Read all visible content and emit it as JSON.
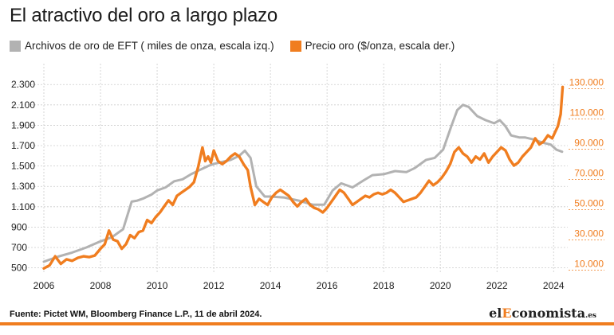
{
  "header": {
    "title": "El atractivo del oro a largo plazo"
  },
  "footer": {
    "source": "Fuente: Pictet WM, Bloomberg Finance L.P., 11 de abril 2024.",
    "brand_prefix": "el",
    "brand_highlight": "E",
    "brand_rest": "conomista",
    "brand_tld": ".es"
  },
  "colors": {
    "accent": "#f07d1f",
    "gray": "#b2b2b2",
    "grid": "#cccccc"
  },
  "chart_data": {
    "type": "line",
    "xlim": [
      2006,
      2024.5
    ],
    "x_ticks": [
      "2006",
      "2008",
      "2010",
      "2012",
      "2014",
      "2016",
      "2018",
      "2020",
      "2022",
      "2024"
    ],
    "y_left": {
      "ylim": [
        450,
        2380
      ],
      "ticks": [
        "500",
        "700",
        "900",
        "1.100",
        "1.300",
        "1.500",
        "1.700",
        "1.900",
        "2.100",
        "2.300"
      ]
    },
    "y_right": {
      "ylim": [
        5000,
        135000
      ],
      "ticks": [
        "10.000",
        "30.000",
        "50.000",
        "70.000",
        "90.000",
        "110.000",
        "130.000"
      ]
    },
    "grid": true,
    "legend_position": "top",
    "series": [
      {
        "name": "Archivos de oro de EFT ( miles de onza, escala izq.)",
        "axis": "left",
        "color": "#b2b2b2",
        "x": [
          2006,
          2006.5,
          2007,
          2007.5,
          2008,
          2008.4,
          2008.8,
          2009.1,
          2009.3,
          2009.5,
          2009.8,
          2010,
          2010.3,
          2010.6,
          2010.9,
          2011.2,
          2011.5,
          2011.8,
          2012,
          2012.3,
          2012.6,
          2012.9,
          2013.1,
          2013.3,
          2013.5,
          2013.8,
          2014,
          2014.5,
          2015,
          2015.5,
          2015.9,
          2016.2,
          2016.5,
          2016.9,
          2017.3,
          2017.6,
          2018,
          2018.4,
          2018.8,
          2019.1,
          2019.5,
          2019.8,
          2020.1,
          2020.4,
          2020.6,
          2020.8,
          2021,
          2021.3,
          2021.6,
          2021.9,
          2022.1,
          2022.3,
          2022.5,
          2022.8,
          2023,
          2023.3,
          2023.6,
          2023.9,
          2024.1,
          2024.3
        ],
        "values": [
          560,
          610,
          650,
          700,
          760,
          800,
          880,
          1150,
          1160,
          1180,
          1220,
          1260,
          1290,
          1350,
          1370,
          1420,
          1460,
          1500,
          1520,
          1540,
          1560,
          1600,
          1650,
          1580,
          1300,
          1200,
          1200,
          1190,
          1160,
          1120,
          1120,
          1260,
          1330,
          1290,
          1360,
          1410,
          1420,
          1450,
          1440,
          1480,
          1560,
          1580,
          1660,
          1900,
          2050,
          2100,
          2080,
          1990,
          1950,
          1920,
          1950,
          1890,
          1800,
          1780,
          1780,
          1760,
          1730,
          1710,
          1660,
          1640
        ]
      },
      {
        "name": "Precio oro ($/onza, escala der.)",
        "axis": "right",
        "color": "#f07d1f",
        "x": [
          2006,
          2006.2,
          2006.4,
          2006.6,
          2006.8,
          2007,
          2007.2,
          2007.4,
          2007.6,
          2007.8,
          2008,
          2008.15,
          2008.3,
          2008.45,
          2008.6,
          2008.75,
          2008.9,
          2009.05,
          2009.2,
          2009.35,
          2009.5,
          2009.65,
          2009.8,
          2009.95,
          2010.1,
          2010.25,
          2010.4,
          2010.55,
          2010.7,
          2010.85,
          2011,
          2011.15,
          2011.3,
          2011.45,
          2011.6,
          2011.7,
          2011.8,
          2011.9,
          2012,
          2012.15,
          2012.3,
          2012.45,
          2012.6,
          2012.75,
          2012.9,
          2013.05,
          2013.2,
          2013.3,
          2013.45,
          2013.6,
          2013.75,
          2013.9,
          2014.05,
          2014.2,
          2014.35,
          2014.5,
          2014.65,
          2014.8,
          2014.95,
          2015.1,
          2015.25,
          2015.4,
          2015.55,
          2015.7,
          2015.85,
          2016,
          2016.15,
          2016.3,
          2016.45,
          2016.6,
          2016.75,
          2016.9,
          2017.05,
          2017.2,
          2017.35,
          2017.5,
          2017.65,
          2017.8,
          2017.95,
          2018.1,
          2018.25,
          2018.4,
          2018.55,
          2018.7,
          2018.85,
          2019,
          2019.15,
          2019.3,
          2019.45,
          2019.6,
          2019.75,
          2019.9,
          2020.05,
          2020.2,
          2020.35,
          2020.5,
          2020.65,
          2020.8,
          2020.95,
          2021.1,
          2021.25,
          2021.4,
          2021.55,
          2021.7,
          2021.85,
          2022,
          2022.15,
          2022.3,
          2022.45,
          2022.6,
          2022.75,
          2022.9,
          2023.05,
          2023.2,
          2023.35,
          2023.5,
          2023.65,
          2023.8,
          2023.95,
          2024.05,
          2024.15,
          2024.25,
          2024.32
        ],
        "values": [
          8000,
          10000,
          16000,
          11000,
          14000,
          13000,
          15000,
          16000,
          15500,
          16500,
          21000,
          24000,
          33000,
          27000,
          26000,
          21000,
          24000,
          30000,
          28000,
          32000,
          33000,
          40000,
          38000,
          42000,
          45000,
          49000,
          53000,
          50000,
          56000,
          58000,
          60000,
          62000,
          65000,
          75000,
          88000,
          79000,
          82000,
          78000,
          86000,
          79000,
          77000,
          79000,
          82000,
          84000,
          82000,
          77000,
          73000,
          62000,
          50000,
          54000,
          52000,
          50000,
          55000,
          58000,
          60000,
          58000,
          56000,
          52000,
          49000,
          52000,
          54000,
          50000,
          48000,
          47000,
          45000,
          48000,
          52000,
          56000,
          60000,
          58000,
          54000,
          50000,
          52000,
          54000,
          56000,
          55000,
          57000,
          58000,
          57000,
          58000,
          60000,
          58000,
          55000,
          52000,
          53000,
          54000,
          55000,
          58000,
          62000,
          66000,
          63000,
          65000,
          68000,
          72000,
          77000,
          85000,
          88000,
          84000,
          82000,
          78000,
          82000,
          80000,
          84000,
          78000,
          82000,
          85000,
          88000,
          86000,
          80000,
          76000,
          78000,
          82000,
          85000,
          88000,
          94000,
          90000,
          92000,
          96000,
          94000,
          98000,
          102000,
          110000,
          128000
        ]
      }
    ]
  }
}
